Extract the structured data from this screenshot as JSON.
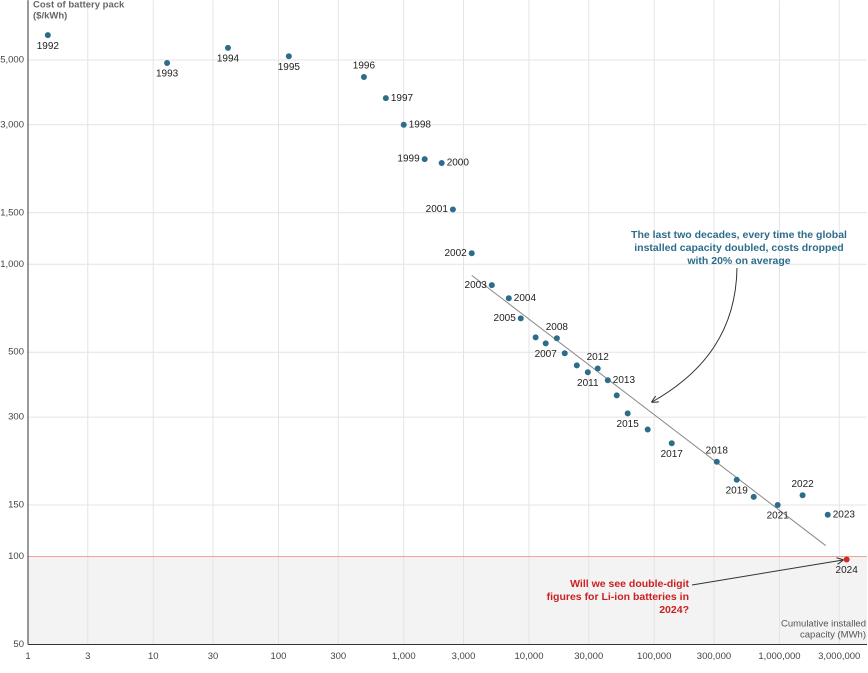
{
  "chart_data": {
    "type": "scatter",
    "ylabel": [
      "Cost of battery pack",
      "($/kWh)"
    ],
    "xlabel": [
      "Cumulative installed",
      "capacity (MWh)"
    ],
    "log_x": true,
    "log_y": true,
    "grid": true,
    "xlim": [
      1,
      5000000
    ],
    "ylim": [
      50,
      8000
    ],
    "xticks": [
      1,
      3,
      10,
      30,
      100,
      300,
      {
        "value": 1000,
        "label": "1,000"
      },
      {
        "value": 3000,
        "label": "3,000"
      },
      {
        "value": 10000,
        "label": "10,000"
      },
      {
        "value": 30000,
        "label": "30,000"
      },
      {
        "value": 100000,
        "label": "100,000"
      },
      {
        "value": 300000,
        "label": "300,000"
      },
      {
        "value": 1000000,
        "label": "1,000,000"
      },
      {
        "value": 3000000,
        "label": "3,000,000"
      }
    ],
    "yticks": [
      50,
      100,
      150,
      300,
      500,
      {
        "value": 1000,
        "label": "1,000"
      },
      {
        "value": 1500,
        "label": "1,500"
      },
      {
        "value": 3000,
        "label": "3,000"
      },
      {
        "value": 5000,
        "label": "5,000"
      }
    ],
    "labels": [
      "1992",
      "1993",
      "1994",
      "1995",
      "1996",
      "1997",
      "1998",
      "1999",
      "2000",
      "2001",
      "2002",
      "2003",
      "2004",
      "2005",
      null,
      "2007",
      "2008",
      null,
      null,
      "2011",
      "2012",
      "2013",
      null,
      "2015",
      null,
      "2017",
      "2018",
      "2019",
      null,
      "2021",
      "2022",
      "2023",
      "2024"
    ],
    "x": [
      1.44,
      12.9,
      39.5,
      121,
      481,
      720,
      1000,
      1470,
      2010,
      2470,
      3490,
      5050,
      6900,
      8600,
      11300,
      13600,
      16700,
      19300,
      24100,
      29500,
      35400,
      42600,
      50200,
      61400,
      88700,
      138000,
      316000,
      456000,
      623000,
      968000,
      1530000,
      2430000,
      3440000
    ],
    "y": [
      6080,
      4880,
      5500,
      5150,
      4370,
      3700,
      3000,
      2290,
      2220,
      1540,
      1090,
      848,
      765,
      653,
      562,
      536,
      558,
      496,
      451,
      427,
      440,
      401,
      356,
      309,
      272,
      244,
      211,
      183,
      160,
      150,
      162,
      139,
      97.7
    ],
    "color": "#2d6d8c",
    "highlight_color": "#d42a24",
    "trendline": {
      "x": [
        3490,
        2340000
      ],
      "y": [
        916,
        109
      ],
      "color": "#888888"
    },
    "reference_line": {
      "value": 100,
      "color": "#f0a496",
      "fill": "#f3f3f3"
    },
    "annotations": [
      {
        "lines": [
          "The last two decades, every time the global",
          "installed capacity doubled, costs dropped",
          "with 20% on average"
        ],
        "color": "#2d6d8c"
      },
      {
        "lines": [
          "Will we see double-digit",
          "figures for Li-ion batteries in",
          "2024?"
        ],
        "color": "#cc2020"
      }
    ]
  }
}
